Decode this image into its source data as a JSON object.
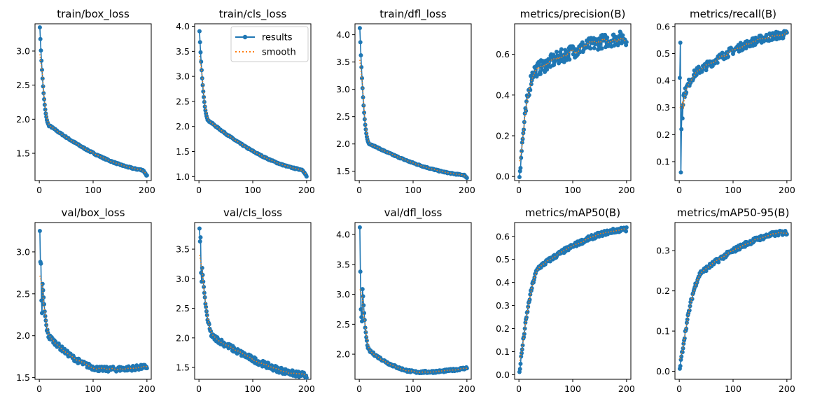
{
  "chart_data": {
    "type": "line",
    "figure_title": "",
    "colors": {
      "results": "#1f77b4",
      "smooth": "#ff7f0e",
      "axes": "#000000",
      "background": "#ffffff"
    },
    "legend": {
      "placement": "top-right",
      "panel": "train/cls_loss",
      "entries": [
        "results",
        "smooth"
      ]
    },
    "series_names": [
      "results",
      "smooth"
    ],
    "epochs": 200,
    "panels": [
      {
        "title": "train/box_loss",
        "xlim": [
          -8,
          208
        ],
        "ylim": [
          1.1,
          3.4
        ],
        "xticks": [
          0,
          100,
          200
        ],
        "yticks": [
          1.5,
          2.0,
          2.5,
          3.0
        ],
        "ytick_labels": [
          "1.5",
          "2.0",
          "2.5",
          "3.0"
        ],
        "curve": {
          "kind": "decay",
          "start": 3.35,
          "end": 1.17,
          "knee_epoch": 20,
          "knee_value": 1.9,
          "final_drop": [
            193,
            1.25,
            1.17
          ],
          "noise": 0.01
        }
      },
      {
        "title": "train/cls_loss",
        "xlim": [
          -8,
          208
        ],
        "ylim": [
          0.92,
          4.05
        ],
        "xticks": [
          0,
          100,
          200
        ],
        "yticks": [
          1.0,
          1.5,
          2.0,
          2.5,
          3.0,
          3.5,
          4.0
        ],
        "ytick_labels": [
          "1.0",
          "1.5",
          "2.0",
          "2.5",
          "3.0",
          "3.5",
          "4.0"
        ],
        "curve": {
          "kind": "decay",
          "start": 3.9,
          "end": 1.0,
          "knee_epoch": 20,
          "knee_value": 2.1,
          "final_drop": [
            193,
            1.13,
            1.0
          ],
          "noise": 0.012
        }
      },
      {
        "title": "train/dfl_loss",
        "xlim": [
          -8,
          208
        ],
        "ylim": [
          1.33,
          4.2
        ],
        "xticks": [
          0,
          100,
          200
        ],
        "yticks": [
          1.5,
          2.0,
          2.5,
          3.0,
          3.5,
          4.0
        ],
        "ytick_labels": [
          "1.5",
          "2.0",
          "2.5",
          "3.0",
          "3.5",
          "4.0"
        ],
        "curve": {
          "kind": "decay",
          "start": 4.12,
          "end": 1.38,
          "knee_epoch": 20,
          "knee_value": 2.0,
          "final_drop": [
            195,
            1.43,
            1.38
          ],
          "noise": 0.01
        }
      },
      {
        "title": "metrics/precision(B)",
        "xlim": [
          -8,
          208
        ],
        "ylim": [
          -0.02,
          0.75
        ],
        "xticks": [
          0,
          100,
          200
        ],
        "yticks": [
          0.0,
          0.2,
          0.4,
          0.6
        ],
        "ytick_labels": [
          "0.0",
          "0.2",
          "0.4",
          "0.6"
        ],
        "curve": {
          "kind": "rise",
          "start": 0.01,
          "end": 0.68,
          "knee_epoch": 30,
          "knee_value": 0.52,
          "noise": 0.035
        }
      },
      {
        "title": "metrics/recall(B)",
        "xlim": [
          -8,
          208
        ],
        "ylim": [
          0.03,
          0.61
        ],
        "xticks": [
          0,
          100,
          200
        ],
        "yticks": [
          0.1,
          0.2,
          0.3,
          0.4,
          0.5,
          0.6
        ],
        "ytick_labels": [
          "0.1",
          "0.2",
          "0.3",
          "0.4",
          "0.5",
          "0.6"
        ],
        "curve": {
          "kind": "rise",
          "start": 0.3,
          "end": 0.57,
          "knee_epoch": 40,
          "knee_value": 0.44,
          "noise": 0.015,
          "early_points": [
            0.41,
            0.54,
            0.06,
            0.22,
            0.3,
            0.26,
            0.31
          ]
        }
      },
      {
        "title": "val/box_loss",
        "xlim": [
          -8,
          208
        ],
        "ylim": [
          1.48,
          3.35
        ],
        "xticks": [
          0,
          100,
          200
        ],
        "yticks": [
          1.5,
          2.0,
          2.5,
          3.0
        ],
        "ytick_labels": [
          "1.5",
          "2.0",
          "2.5",
          "3.0"
        ],
        "curve": {
          "kind": "ushape",
          "start": 3.25,
          "min_value": 1.6,
          "min_epoch": 120,
          "end": 1.63,
          "knee_epoch": 20,
          "knee_value": 1.98,
          "noise": 0.03,
          "early_points": [
            3.25,
            2.88,
            2.86,
            2.42,
            2.27
          ]
        }
      },
      {
        "title": "val/cls_loss",
        "xlim": [
          -8,
          208
        ],
        "ylim": [
          1.3,
          3.95
        ],
        "xticks": [
          0,
          100,
          200
        ],
        "yticks": [
          1.5,
          2.0,
          2.5,
          3.0,
          3.5
        ],
        "ytick_labels": [
          "1.5",
          "2.0",
          "2.5",
          "3.0",
          "3.5"
        ],
        "curve": {
          "kind": "decay",
          "start": 3.85,
          "end": 1.37,
          "knee_epoch": 30,
          "knee_value": 2.0,
          "noise": 0.05,
          "early_points": [
            3.85,
            3.63,
            3.7,
            3.1,
            2.95
          ]
        }
      },
      {
        "title": "val/dfl_loss",
        "xlim": [
          -8,
          208
        ],
        "ylim": [
          1.58,
          4.2
        ],
        "xticks": [
          0,
          100,
          200
        ],
        "yticks": [
          2.0,
          2.5,
          3.0,
          3.5,
          4.0
        ],
        "ytick_labels": [
          "2.0",
          "2.5",
          "3.0",
          "3.5",
          "4.0"
        ],
        "curve": {
          "kind": "ushape",
          "start": 4.12,
          "min_value": 1.7,
          "min_epoch": 110,
          "end": 1.77,
          "knee_epoch": 20,
          "knee_value": 2.05,
          "noise": 0.02,
          "early_points": [
            4.12,
            3.38,
            2.75,
            2.62,
            2.55
          ]
        }
      },
      {
        "title": "metrics/mAP50(B)",
        "xlim": [
          -8,
          208
        ],
        "ylim": [
          -0.02,
          0.66
        ],
        "xticks": [
          0,
          100,
          200
        ],
        "yticks": [
          0.0,
          0.1,
          0.2,
          0.3,
          0.4,
          0.5,
          0.6
        ],
        "ytick_labels": [
          "0.0",
          "0.1",
          "0.2",
          "0.3",
          "0.4",
          "0.5",
          "0.6"
        ],
        "curve": {
          "kind": "rise",
          "start": 0.01,
          "end": 0.63,
          "knee_epoch": 40,
          "knee_value": 0.47,
          "noise": 0.01
        }
      },
      {
        "title": "metrics/mAP50-95(B)",
        "xlim": [
          -8,
          208
        ],
        "ylim": [
          -0.02,
          0.37
        ],
        "xticks": [
          0,
          100,
          200
        ],
        "yticks": [
          0.0,
          0.1,
          0.2,
          0.3
        ],
        "ytick_labels": [
          "0.0",
          "0.1",
          "0.2",
          "0.3"
        ],
        "curve": {
          "kind": "rise",
          "start": 0.005,
          "end": 0.345,
          "knee_epoch": 45,
          "knee_value": 0.25,
          "noise": 0.006
        }
      }
    ]
  }
}
